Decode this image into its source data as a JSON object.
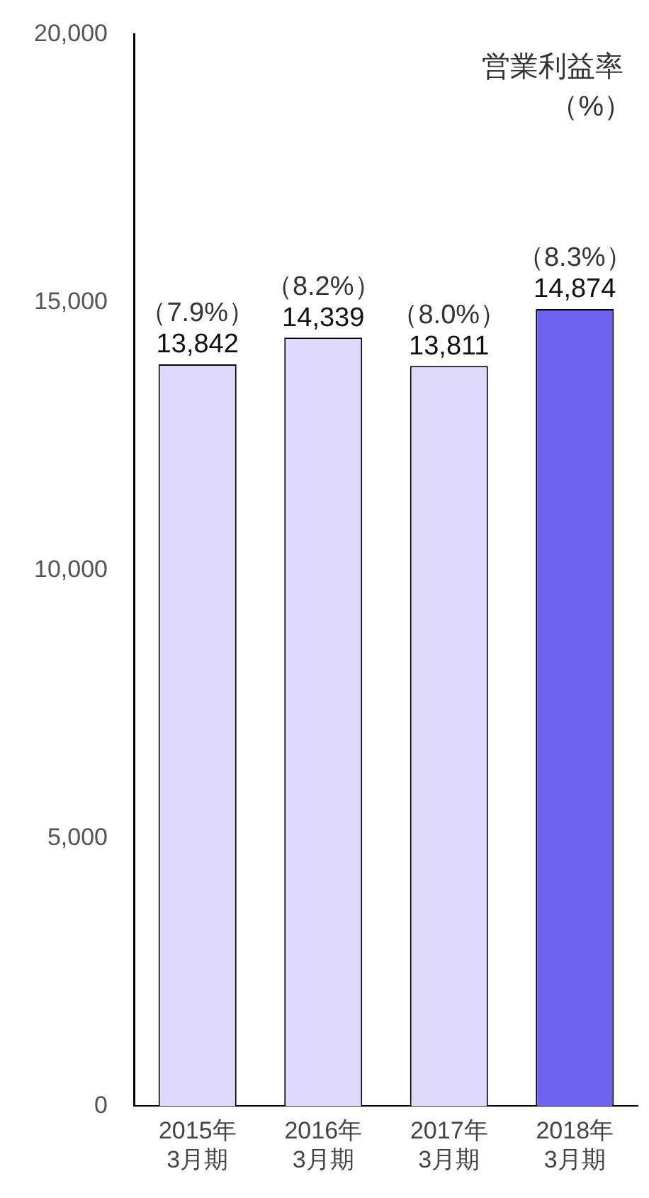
{
  "chart_data": {
    "type": "bar",
    "categories": [
      "2015年\n3月期",
      "2016年\n3月期",
      "2017年\n3月期",
      "2018年\n3月期"
    ],
    "values": [
      13842,
      14339,
      13811,
      14874
    ],
    "colors": [
      "#ddd8fc",
      "#ddd8fc",
      "#ddd8fc",
      "#6f62f2"
    ],
    "value_labels": [
      "13,842",
      "14,339",
      "13,811",
      "14,874"
    ],
    "ylim": [
      0,
      20000
    ],
    "yticks": [
      {
        "value": 0,
        "label": "0"
      },
      {
        "value": 5000,
        "label": "5,000"
      },
      {
        "value": 10000,
        "label": "10,000"
      },
      {
        "value": 15000,
        "label": "15,000"
      },
      {
        "value": 20000,
        "label": "20,000"
      }
    ],
    "grid": false,
    "legend": false,
    "annotations": [
      "営業利益率",
      "（%）",
      {
        "text": "（7.9%）",
        "x": "2015年\n3月期",
        "y": 13842
      },
      {
        "text": "（8.2%）",
        "x": "2016年\n3月期",
        "y": 14339
      },
      {
        "text": "（8.0%）",
        "x": "2017年\n3月期",
        "y": 13811
      },
      {
        "text": "（8.3%）",
        "x": "2018年\n3月期",
        "y": 14874
      }
    ]
  }
}
